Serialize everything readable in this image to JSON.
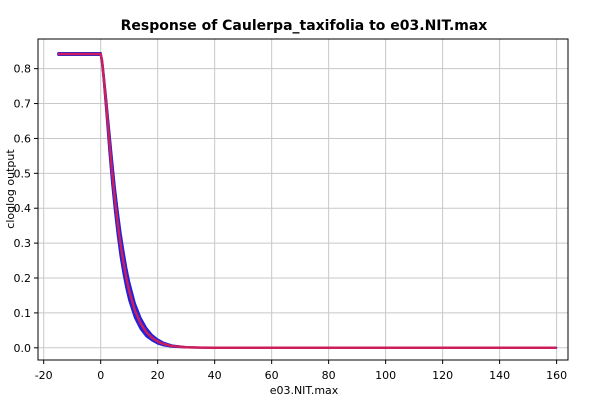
{
  "chart_data": {
    "type": "line",
    "title": "Response of Caulerpa_taxifolia to e03.NIT.max",
    "xlabel": "e03.NIT.max",
    "ylabel": "cloglog output",
    "xlim": [
      -22,
      164
    ],
    "ylim": [
      -0.035,
      0.885
    ],
    "xticks": [
      -20,
      0,
      20,
      40,
      60,
      80,
      100,
      120,
      140,
      160
    ],
    "yticks": [
      0.0,
      0.1,
      0.2,
      0.3,
      0.4,
      0.5,
      0.6,
      0.7,
      0.8
    ],
    "grid": true,
    "colors": {
      "mean": "#cc1f5a",
      "band": "#2222dd"
    },
    "series": [
      {
        "role": "mean",
        "x": [
          -15,
          0,
          0.5,
          1,
          2,
          3,
          4,
          5,
          6,
          7,
          8,
          9,
          10,
          12,
          14,
          16,
          18,
          20,
          22,
          25,
          30,
          35,
          40,
          60,
          80,
          100,
          120,
          140,
          160
        ],
        "y": [
          0.842,
          0.842,
          0.82,
          0.78,
          0.69,
          0.595,
          0.505,
          0.425,
          0.355,
          0.295,
          0.245,
          0.2,
          0.163,
          0.107,
          0.07,
          0.045,
          0.029,
          0.018,
          0.011,
          0.005,
          0.0015,
          0.0005,
          0.0,
          0.0,
          0.0,
          0.0,
          0.0,
          0.0,
          0.0
        ]
      },
      {
        "role": "upper",
        "x": [
          -15,
          0,
          0.5,
          1,
          2,
          3,
          4,
          5,
          6,
          7,
          8,
          9,
          10,
          12,
          14,
          16,
          18,
          20,
          22,
          25,
          30,
          35,
          40,
          60,
          80,
          100,
          120,
          140,
          160
        ],
        "y": [
          0.845,
          0.845,
          0.826,
          0.79,
          0.71,
          0.625,
          0.54,
          0.46,
          0.392,
          0.33,
          0.278,
          0.23,
          0.19,
          0.128,
          0.086,
          0.057,
          0.037,
          0.024,
          0.015,
          0.007,
          0.002,
          0.0007,
          0.0,
          0.0,
          0.0,
          0.0,
          0.0,
          0.0,
          0.0
        ]
      },
      {
        "role": "lower",
        "x": [
          -15,
          0,
          0.5,
          1,
          2,
          3,
          4,
          5,
          6,
          7,
          8,
          9,
          10,
          12,
          14,
          16,
          18,
          20,
          22,
          25,
          30,
          35,
          40,
          60,
          80,
          100,
          120,
          140,
          160
        ],
        "y": [
          0.839,
          0.839,
          0.812,
          0.77,
          0.67,
          0.565,
          0.47,
          0.39,
          0.32,
          0.26,
          0.212,
          0.17,
          0.136,
          0.086,
          0.054,
          0.033,
          0.021,
          0.012,
          0.007,
          0.003,
          0.001,
          0.0003,
          0.0,
          0.0,
          0.0,
          0.0,
          0.0,
          0.0,
          0.0
        ]
      }
    ]
  }
}
